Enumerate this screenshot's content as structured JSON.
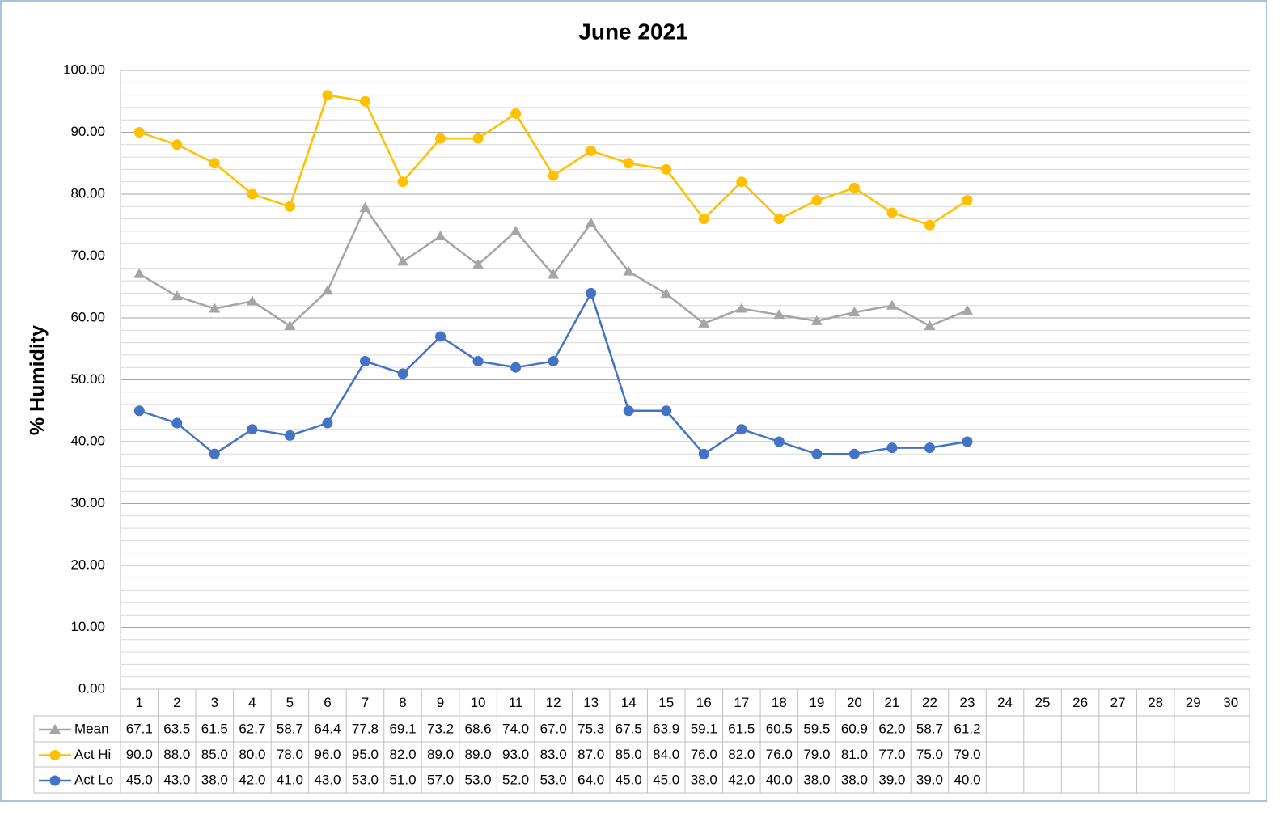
{
  "chart_data": {
    "type": "line",
    "title": "June 2021",
    "y_label": "% Humidity",
    "categories": [
      "1",
      "2",
      "3",
      "4",
      "5",
      "6",
      "7",
      "8",
      "9",
      "10",
      "11",
      "12",
      "13",
      "14",
      "15",
      "16",
      "17",
      "18",
      "19",
      "20",
      "21",
      "22",
      "23",
      "24",
      "25",
      "26",
      "27",
      "28",
      "29",
      "30"
    ],
    "series": [
      {
        "name": "Mean",
        "color": "#a5a5a5",
        "marker": "triangle",
        "values": [
          67.1,
          63.5,
          61.5,
          62.7,
          58.7,
          64.4,
          77.8,
          69.1,
          73.2,
          68.6,
          74.0,
          67.0,
          75.3,
          67.5,
          63.9,
          59.1,
          61.5,
          60.5,
          59.5,
          60.9,
          62.0,
          58.7,
          61.2,
          null,
          null,
          null,
          null,
          null,
          null,
          null
        ],
        "value_labels": [
          "67.1",
          "63.5",
          "61.5",
          "62.7",
          "58.7",
          "64.4",
          "77.8",
          "69.1",
          "73.2",
          "68.6",
          "74.0",
          "67.0",
          "75.3",
          "67.5",
          "63.9",
          "59.1",
          "61.5",
          "60.5",
          "59.5",
          "60.9",
          "62.0",
          "58.7",
          "61.2",
          null,
          null,
          null,
          null,
          null,
          null,
          null
        ]
      },
      {
        "name": "Act Hi",
        "color": "#ffc000",
        "marker": "circle",
        "values": [
          90,
          88,
          85,
          80,
          78,
          96,
          95,
          82,
          89,
          89,
          93,
          83,
          87,
          85,
          84,
          76,
          82,
          76,
          79,
          81,
          77,
          75,
          79,
          null,
          null,
          null,
          null,
          null,
          null,
          null
        ],
        "value_labels": [
          "90.0",
          "88.0",
          "85.0",
          "80.0",
          "78.0",
          "96.0",
          "95.0",
          "82.0",
          "89.0",
          "89.0",
          "93.0",
          "83.0",
          "87.0",
          "85.0",
          "84.0",
          "76.0",
          "82.0",
          "76.0",
          "79.0",
          "81.0",
          "77.0",
          "75.0",
          "79.0",
          null,
          null,
          null,
          null,
          null,
          null,
          null
        ]
      },
      {
        "name": "Act Lo",
        "color": "#4472c4",
        "marker": "circle",
        "values": [
          45,
          43,
          38,
          42,
          41,
          43,
          53,
          51,
          57,
          53,
          52,
          53,
          64,
          45,
          45,
          38,
          42,
          40,
          38,
          38,
          39,
          39,
          40,
          null,
          null,
          null,
          null,
          null,
          null,
          null
        ],
        "value_labels": [
          "45.0",
          "43.0",
          "38.0",
          "42.0",
          "41.0",
          "43.0",
          "53.0",
          "51.0",
          "57.0",
          "53.0",
          "52.0",
          "53.0",
          "64.0",
          "45.0",
          "45.0",
          "38.0",
          "42.0",
          "40.0",
          "38.0",
          "38.0",
          "39.0",
          "39.0",
          "40.0",
          null,
          null,
          null,
          null,
          null,
          null,
          null
        ]
      }
    ],
    "ylim": [
      0,
      100
    ],
    "yticks": [
      {
        "value": 0,
        "label": "0.00"
      },
      {
        "value": 10,
        "label": "10.00"
      },
      {
        "value": 20,
        "label": "20.00"
      },
      {
        "value": 30,
        "label": "30.00"
      },
      {
        "value": 40,
        "label": "40.00"
      },
      {
        "value": 50,
        "label": "50.00"
      },
      {
        "value": 60,
        "label": "60.00"
      },
      {
        "value": 70,
        "label": "70.00"
      },
      {
        "value": 80,
        "label": "80.00"
      },
      {
        "value": 90,
        "label": "90.00"
      },
      {
        "value": 100,
        "label": "100.00"
      }
    ],
    "grid": true,
    "data_table": true
  }
}
